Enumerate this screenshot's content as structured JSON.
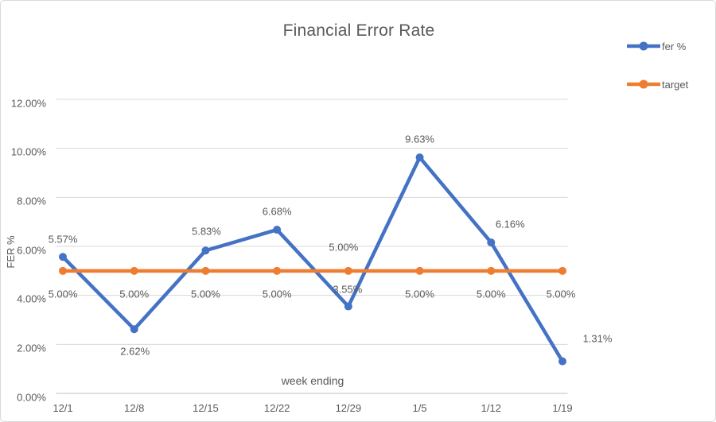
{
  "chart_data": {
    "type": "line",
    "title": "Financial Error Rate",
    "xlabel": "week ending",
    "ylabel": "FER %",
    "categories": [
      "12/1",
      "12/8",
      "12/15",
      "12/22",
      "12/29",
      "1/5",
      "1/12",
      "1/19"
    ],
    "series": [
      {
        "name": "fer %",
        "color": "#4472C4",
        "values": [
          5.57,
          2.62,
          5.83,
          6.68,
          3.55,
          9.63,
          6.16,
          1.31
        ],
        "labels": [
          "5.57%",
          "2.62%",
          "5.83%",
          "6.68%",
          "3.55%",
          "9.63%",
          "6.16%",
          "1.31%"
        ]
      },
      {
        "name": "target",
        "color": "#ED7D31",
        "values": [
          5,
          5,
          5,
          5,
          5,
          5,
          5,
          5
        ],
        "labels": [
          "5.00%",
          "5.00%",
          "5.00%",
          "5.00%",
          "5.00%",
          "5.00%",
          "5.00%",
          "5.00%"
        ]
      }
    ],
    "ylim": [
      0,
      12
    ],
    "ytick_step": 2,
    "ytick_labels": [
      "0.00%",
      "2.00%",
      "4.00%",
      "6.00%",
      "8.00%",
      "10.00%",
      "12.00%"
    ],
    "grid": true,
    "legend_position": "right-top"
  },
  "styles": {
    "text_color": "#595959",
    "grid_color": "#D9D9D9",
    "axis_color": "#BFBFBF",
    "background": "#FFFFFF",
    "frame_border": "#D9D9D9"
  }
}
